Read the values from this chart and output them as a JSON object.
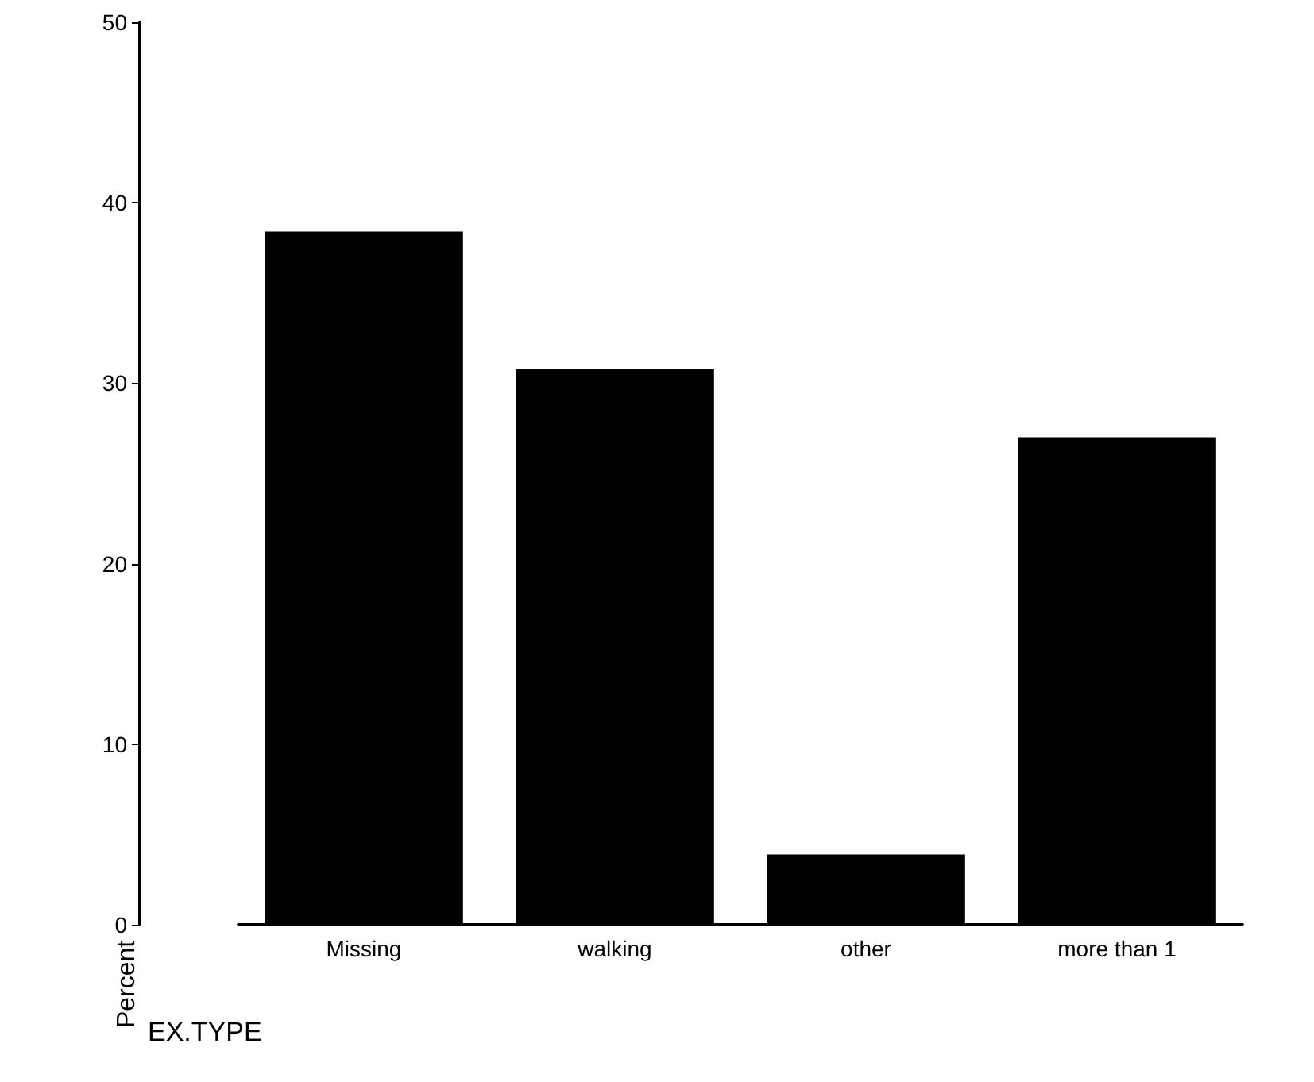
{
  "chart_data": {
    "type": "bar",
    "categories": [
      "Missing",
      "walking",
      "other",
      "more than 1"
    ],
    "values": [
      38.4,
      30.8,
      3.9,
      27.0
    ],
    "color": "#000000",
    "ylim": [
      0,
      50
    ],
    "yticks": [
      0,
      10,
      20,
      30,
      40,
      50
    ],
    "grid": false,
    "xlabel": "EX.TYPE",
    "ylabel": "Percent"
  }
}
